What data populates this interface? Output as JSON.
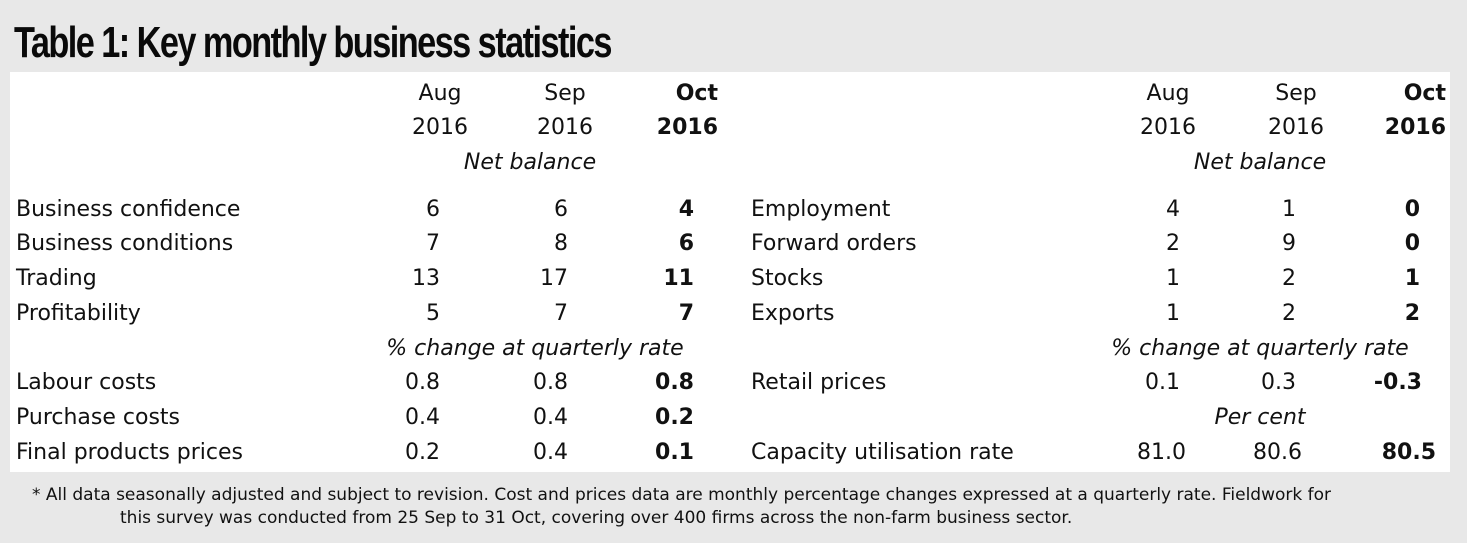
{
  "title": "Table 1: Key monthly business statistics",
  "left": {
    "headers": [
      {
        "month": "Aug",
        "year": "2016"
      },
      {
        "month": "Sep",
        "year": "2016"
      },
      {
        "month": "Oct",
        "year": "2016"
      }
    ],
    "section1": "Net balance",
    "section2": "% change at quarterly rate",
    "rows": [
      {
        "label": "Business confidence",
        "v": [
          "6",
          "6",
          "4"
        ]
      },
      {
        "label": "Business conditions",
        "v": [
          "7",
          "8",
          "6"
        ]
      },
      {
        "label": "Trading",
        "v": [
          "13",
          "17",
          "11"
        ]
      },
      {
        "label": "Profitability",
        "v": [
          "5",
          "7",
          "7"
        ]
      },
      {
        "label": "Labour costs",
        "v": [
          "0.8",
          "0.8",
          "0.8"
        ]
      },
      {
        "label": "Purchase costs",
        "v": [
          "0.4",
          "0.4",
          "0.2"
        ]
      },
      {
        "label": "Final products prices",
        "v": [
          "0.2",
          "0.4",
          "0.1"
        ]
      }
    ]
  },
  "right": {
    "headers": [
      {
        "month": "Aug",
        "year": "2016"
      },
      {
        "month": "Sep",
        "year": "2016"
      },
      {
        "month": "Oct",
        "year": "2016"
      }
    ],
    "section1": "Net balance",
    "section2": "% change at quarterly rate",
    "section3": "Per cent",
    "rows": [
      {
        "label": "Employment",
        "v": [
          "4",
          "1",
          "0"
        ]
      },
      {
        "label": "Forward orders",
        "v": [
          "2",
          "9",
          "0"
        ]
      },
      {
        "label": "Stocks",
        "v": [
          "1",
          "2",
          "1"
        ]
      },
      {
        "label": "Exports",
        "v": [
          "1",
          "2",
          "2"
        ]
      },
      {
        "label": "Retail prices",
        "v": [
          "0.1",
          "0.3",
          "-0.3"
        ]
      },
      {
        "label": "Capacity utilisation rate",
        "v": [
          "81.0",
          "80.6",
          "80.5"
        ]
      }
    ]
  },
  "footnote": {
    "line1": "* All data seasonally adjusted and subject to revision. Cost and prices data are monthly percentage changes expressed at a quarterly rate. Fieldwork for",
    "line2": "this survey was conducted from 25 Sep to 31 Oct, covering over 400 firms across the non-farm business sector."
  }
}
